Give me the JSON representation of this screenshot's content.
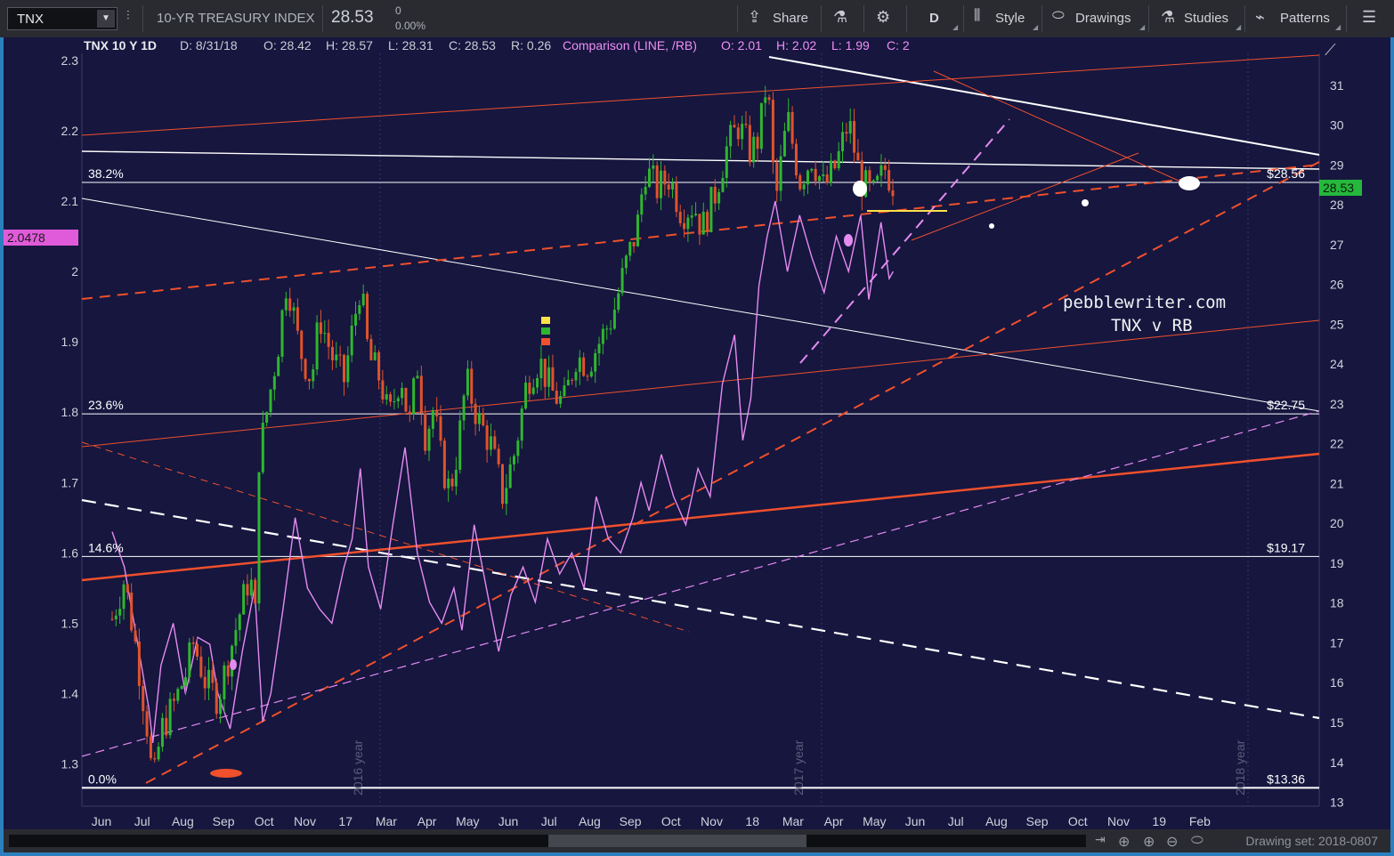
{
  "toolbar": {
    "symbol": "TNX",
    "description": "10-YR TREASURY INDEX",
    "last": "28.53",
    "change": "0",
    "change_pct": "0.00%",
    "share": "Share",
    "period": "D",
    "style": "Style",
    "drawings": "Drawings",
    "studies": "Studies",
    "patterns": "Patterns"
  },
  "legend": {
    "title": "TNX 10 Y 1D",
    "date": "D: 8/31/18",
    "open": "O: 28.42",
    "high": "H: 28.57",
    "low": "L: 28.31",
    "close": "C: 28.53",
    "range": "R: 0.26",
    "comparison": "Comparison (LINE, /RB)",
    "cmp_open": "O: 2.01",
    "cmp_high": "H: 2.02",
    "cmp_low": "L: 1.99",
    "cmp_close": "C: 2"
  },
  "annotations": {
    "watermark": "pebblewriter.com",
    "subtitle": "TNX v RB",
    "year_2016": "2016 year",
    "year_2017": "2017 year",
    "year_2018": "2018 year",
    "left_price_badge": "2.0478",
    "right_price_badge": "28.53"
  },
  "fib_levels": [
    {
      "label": "38.2%",
      "price": "$28.56",
      "value": 28.56
    },
    {
      "label": "23.6%",
      "price": "$22.75",
      "value": 22.75
    },
    {
      "label": "14.6%",
      "price": "$19.17",
      "value": 19.17
    },
    {
      "label": "0.0%",
      "price": "$13.36",
      "value": 13.36
    }
  ],
  "colors": {
    "background": "#16163f",
    "up_candle": "#2fb62f",
    "down_candle": "#e0532b",
    "comparison_line": "#e58bf0",
    "trend_red": "#f0502c",
    "badge_green": "#25b83c",
    "badge_pink": "#e05bd9",
    "accent_border": "#2c7fbf"
  },
  "footer": {
    "drawing_set": "Drawing set: 2018-0807"
  },
  "chart_data": {
    "type": "line",
    "x": [
      "Jun",
      "Jul",
      "Aug",
      "Sep",
      "Oct",
      "Nov",
      "17",
      "Mar",
      "Apr",
      "May",
      "Jun",
      "Jul",
      "Aug",
      "Sep",
      "Oct",
      "Nov",
      "18",
      "Mar",
      "Apr",
      "May",
      "Jun",
      "Jul",
      "Aug",
      "Sep",
      "Oct",
      "Nov",
      "19",
      "Feb"
    ],
    "y_right_ticks": [
      13,
      14,
      15,
      16,
      17,
      18,
      19,
      20,
      21,
      22,
      23,
      24,
      25,
      26,
      27,
      28,
      29,
      30,
      31
    ],
    "y_left_ticks": [
      1.3,
      1.4,
      1.5,
      1.6,
      1.7,
      1.8,
      1.9,
      2,
      2.1,
      2.2,
      2.3
    ],
    "y_right_range": [
      12.9,
      31.8
    ],
    "y_left_range": [
      1.24,
      2.31
    ],
    "series": [
      {
        "name": "TNX",
        "axis": "right",
        "points": [
          [
            0,
            17.6
          ],
          [
            0.3,
            18.6
          ],
          [
            0.6,
            16.8
          ],
          [
            0.9,
            14.6
          ],
          [
            1.0,
            13.3
          ],
          [
            1.2,
            14.8
          ],
          [
            1.5,
            15.4
          ],
          [
            1.8,
            16.2
          ],
          [
            2.0,
            17.0
          ],
          [
            2.3,
            16.0
          ],
          [
            2.6,
            15.6
          ],
          [
            2.9,
            16.8
          ],
          [
            3.2,
            18.0
          ],
          [
            3.4,
            18.8
          ],
          [
            3.5,
            17.0
          ],
          [
            3.6,
            21.6
          ],
          [
            3.9,
            23.4
          ],
          [
            4.1,
            24.6
          ],
          [
            4.3,
            26.2
          ],
          [
            4.6,
            24.4
          ],
          [
            4.9,
            23.6
          ],
          [
            5.1,
            25.2
          ],
          [
            5.4,
            24.2
          ],
          [
            5.7,
            23.6
          ],
          [
            5.9,
            24.8
          ],
          [
            6.1,
            26.0
          ],
          [
            6.3,
            24.2
          ],
          [
            6.6,
            23.6
          ],
          [
            6.8,
            22.6
          ],
          [
            7.1,
            23.8
          ],
          [
            7.3,
            22.4
          ],
          [
            7.5,
            24.0
          ],
          [
            7.7,
            22.2
          ],
          [
            7.9,
            22.9
          ],
          [
            8.1,
            21.5
          ],
          [
            8.3,
            20.8
          ],
          [
            8.5,
            21.9
          ],
          [
            8.7,
            23.6
          ],
          [
            9.0,
            22.6
          ],
          [
            9.3,
            22.0
          ],
          [
            9.6,
            20.7
          ],
          [
            9.9,
            21.8
          ],
          [
            10.2,
            23.6
          ],
          [
            10.5,
            24.1
          ],
          [
            10.8,
            23.3
          ],
          [
            11.1,
            23.0
          ],
          [
            11.4,
            24.2
          ],
          [
            11.7,
            24.0
          ],
          [
            12.0,
            24.6
          ],
          [
            12.3,
            25.2
          ],
          [
            12.6,
            26.4
          ],
          [
            12.9,
            27.4
          ],
          [
            13.1,
            28.9
          ],
          [
            13.4,
            28.4
          ],
          [
            13.7,
            28.7
          ],
          [
            14.0,
            27.8
          ],
          [
            14.3,
            28.0
          ],
          [
            14.5,
            27.4
          ],
          [
            14.8,
            28.2
          ],
          [
            15.1,
            29.4
          ],
          [
            15.4,
            30.0
          ],
          [
            15.7,
            29.3
          ],
          [
            15.9,
            29.7
          ],
          [
            16.1,
            31.2
          ],
          [
            16.3,
            28.0
          ],
          [
            16.6,
            30.2
          ],
          [
            16.9,
            28.6
          ],
          [
            17.2,
            29.2
          ],
          [
            17.5,
            28.4
          ],
          [
            17.8,
            29.0
          ],
          [
            18.1,
            30.1
          ],
          [
            18.4,
            28.6
          ],
          [
            18.7,
            28.2
          ],
          [
            19.0,
            28.9
          ],
          [
            19.2,
            28.53
          ]
        ]
      },
      {
        "name": "Comparison (LINE, /RB)",
        "axis": "left",
        "points": [
          [
            0,
            1.63
          ],
          [
            0.3,
            1.58
          ],
          [
            0.6,
            1.48
          ],
          [
            0.9,
            1.38
          ],
          [
            1.0,
            1.33
          ],
          [
            1.2,
            1.44
          ],
          [
            1.5,
            1.5
          ],
          [
            1.8,
            1.4
          ],
          [
            2.1,
            1.48
          ],
          [
            2.4,
            1.47
          ],
          [
            2.6,
            1.4
          ],
          [
            2.9,
            1.35
          ],
          [
            3.2,
            1.46
          ],
          [
            3.5,
            1.55
          ],
          [
            3.7,
            1.36
          ],
          [
            3.9,
            1.4
          ],
          [
            4.2,
            1.52
          ],
          [
            4.5,
            1.65
          ],
          [
            4.8,
            1.55
          ],
          [
            5.1,
            1.52
          ],
          [
            5.4,
            1.5
          ],
          [
            5.7,
            1.58
          ],
          [
            5.9,
            1.62
          ],
          [
            6.1,
            1.72
          ],
          [
            6.3,
            1.58
          ],
          [
            6.6,
            1.52
          ],
          [
            6.9,
            1.64
          ],
          [
            7.2,
            1.75
          ],
          [
            7.5,
            1.6
          ],
          [
            7.8,
            1.53
          ],
          [
            8.1,
            1.5
          ],
          [
            8.4,
            1.55
          ],
          [
            8.6,
            1.49
          ],
          [
            8.9,
            1.64
          ],
          [
            9.2,
            1.55
          ],
          [
            9.5,
            1.46
          ],
          [
            9.8,
            1.54
          ],
          [
            10.1,
            1.58
          ],
          [
            10.4,
            1.53
          ],
          [
            10.7,
            1.62
          ],
          [
            11.0,
            1.57
          ],
          [
            11.3,
            1.6
          ],
          [
            11.6,
            1.55
          ],
          [
            11.9,
            1.68
          ],
          [
            12.2,
            1.62
          ],
          [
            12.5,
            1.6
          ],
          [
            12.8,
            1.65
          ],
          [
            13.0,
            1.7
          ],
          [
            13.2,
            1.66
          ],
          [
            13.5,
            1.74
          ],
          [
            13.8,
            1.68
          ],
          [
            14.1,
            1.64
          ],
          [
            14.4,
            1.72
          ],
          [
            14.7,
            1.68
          ],
          [
            15.0,
            1.84
          ],
          [
            15.3,
            1.91
          ],
          [
            15.5,
            1.76
          ],
          [
            15.7,
            1.82
          ],
          [
            15.9,
            1.98
          ],
          [
            16.1,
            2.05
          ],
          [
            16.3,
            2.1
          ],
          [
            16.6,
            2.0
          ],
          [
            16.9,
            2.08
          ],
          [
            17.2,
            2.02
          ],
          [
            17.5,
            1.97
          ],
          [
            17.8,
            2.05
          ],
          [
            18.1,
            2.0
          ],
          [
            18.4,
            2.08
          ],
          [
            18.6,
            1.96
          ],
          [
            18.9,
            2.07
          ],
          [
            19.1,
            1.99
          ],
          [
            19.2,
            2.0
          ]
        ]
      }
    ],
    "legend_position": "top-left",
    "grid": false
  }
}
